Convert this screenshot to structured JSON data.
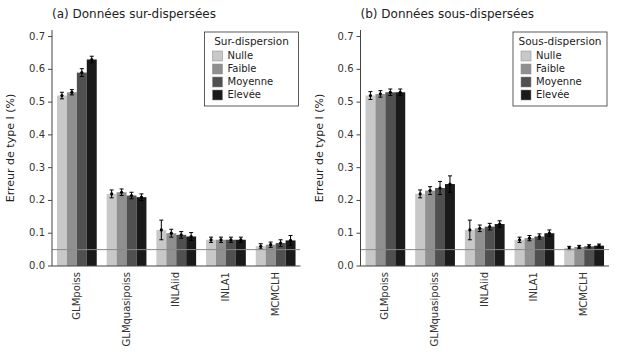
{
  "chart_data": [
    {
      "type": "bar",
      "title": "(a) Données sur-dispersées",
      "ylabel": "Erreur de type I (%)",
      "categories": [
        "GLMpoiss",
        "GLMquasipoiss",
        "INLAiid",
        "INLA1",
        "MCMCLH"
      ],
      "legend_title": "Sur-dispersion",
      "legend": "upper right",
      "series": [
        {
          "name": "Nulle",
          "color": "#c8c8c8",
          "values": [
            0.52,
            0.22,
            0.11,
            0.08,
            0.06
          ],
          "errors": [
            0.01,
            0.012,
            0.03,
            0.008,
            0.008
          ]
        },
        {
          "name": "Faible",
          "color": "#909090",
          "values": [
            0.53,
            0.225,
            0.1,
            0.08,
            0.065
          ],
          "errors": [
            0.008,
            0.01,
            0.012,
            0.008,
            0.008
          ]
        },
        {
          "name": "Moyenne",
          "color": "#505050",
          "values": [
            0.59,
            0.215,
            0.095,
            0.08,
            0.07
          ],
          "errors": [
            0.012,
            0.01,
            0.01,
            0.008,
            0.01
          ]
        },
        {
          "name": "Elevée",
          "color": "#1a1a1a",
          "values": [
            0.63,
            0.21,
            0.09,
            0.08,
            0.078
          ],
          "errors": [
            0.01,
            0.01,
            0.012,
            0.008,
            0.015
          ]
        }
      ],
      "hline": 0.05,
      "ylim": [
        0.0,
        0.72
      ],
      "yticks": [
        {
          "value": 0.0,
          "label": "0.0"
        },
        0.1,
        0.2,
        0.3,
        0.4,
        0.5,
        0.6,
        0.7
      ]
    },
    {
      "type": "bar",
      "title": "(b) Données sous-dispersées",
      "ylabel": "Erreur de type I (%)",
      "categories": [
        "GLMpoiss",
        "GLMquasipoiss",
        "INLAiid",
        "INLA1",
        "MCMCLH"
      ],
      "legend_title": "Sous-dispersion",
      "legend": "upper right",
      "series": [
        {
          "name": "Nulle",
          "color": "#c8c8c8",
          "values": [
            0.52,
            0.22,
            0.11,
            0.08,
            0.055
          ],
          "errors": [
            0.012,
            0.012,
            0.03,
            0.008,
            0.005
          ]
        },
        {
          "name": "Faible",
          "color": "#909090",
          "values": [
            0.525,
            0.23,
            0.115,
            0.085,
            0.058
          ],
          "errors": [
            0.01,
            0.012,
            0.01,
            0.008,
            0.005
          ]
        },
        {
          "name": "Moyenne",
          "color": "#505050",
          "values": [
            0.53,
            0.238,
            0.12,
            0.09,
            0.06
          ],
          "errors": [
            0.01,
            0.02,
            0.01,
            0.008,
            0.005
          ]
        },
        {
          "name": "Elevée",
          "color": "#1a1a1a",
          "values": [
            0.53,
            0.25,
            0.128,
            0.1,
            0.062
          ],
          "errors": [
            0.01,
            0.025,
            0.01,
            0.01,
            0.005
          ]
        }
      ],
      "hline": 0.05,
      "ylim": [
        0.0,
        0.72
      ],
      "yticks": [
        {
          "value": 0.0,
          "label": "0.0"
        },
        0.1,
        0.2,
        0.3,
        0.4,
        0.5,
        0.6,
        0.7
      ]
    }
  ]
}
